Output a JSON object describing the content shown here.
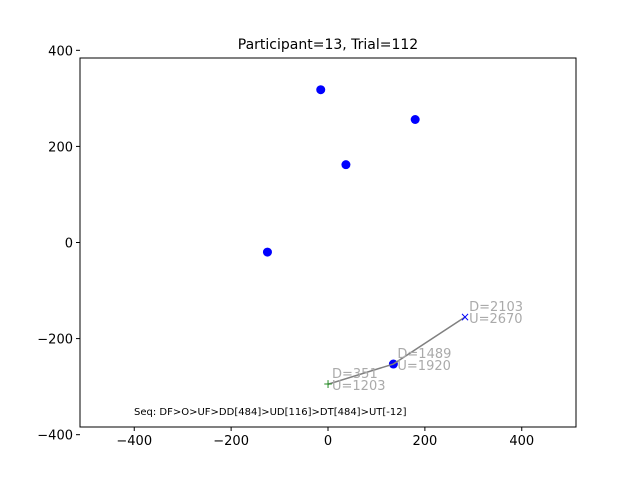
{
  "chart_data": {
    "type": "scatter",
    "title": "Participant=13, Trial=112",
    "xlabel": "",
    "ylabel": "",
    "xlim": [
      -512,
      512
    ],
    "ylim": [
      -384,
      384
    ],
    "x_ticks": [
      -400,
      -200,
      0,
      200,
      400
    ],
    "y_ticks": [
      -400,
      -200,
      0,
      200,
      400
    ],
    "grid": false,
    "targets": [
      {
        "x": -15,
        "y": 318
      },
      {
        "x": 37,
        "y": 162
      },
      {
        "x": 180,
        "y": 256
      },
      {
        "x": -125,
        "y": -20
      },
      {
        "x": 135,
        "y": -253
      }
    ],
    "path": [
      {
        "x": 0,
        "y": -295
      },
      {
        "x": 135,
        "y": -253
      },
      {
        "x": 283,
        "y": -155
      }
    ],
    "start_marker": {
      "x": 0,
      "y": -295,
      "symbol": "+"
    },
    "end_marker": {
      "x": 283,
      "y": -155,
      "symbol": "×"
    },
    "annotations": [
      {
        "x": 0,
        "y": -295,
        "d": "D=351",
        "u": "U=1203"
      },
      {
        "x": 135,
        "y": -253,
        "d": "D=1489",
        "u": "U=1920"
      },
      {
        "x": 283,
        "y": -155,
        "d": "D=2103",
        "u": "U=2670"
      }
    ],
    "sequence_text": "Seq: DF>O>UF>DD[484]>UD[116]>DT[484]>UT[-12]",
    "colors": {
      "target": "#0000ff",
      "path": "#808080",
      "start": "#228b22",
      "end": "#0000ff",
      "annotation": "#aaaaaa",
      "axis": "#000000"
    }
  }
}
